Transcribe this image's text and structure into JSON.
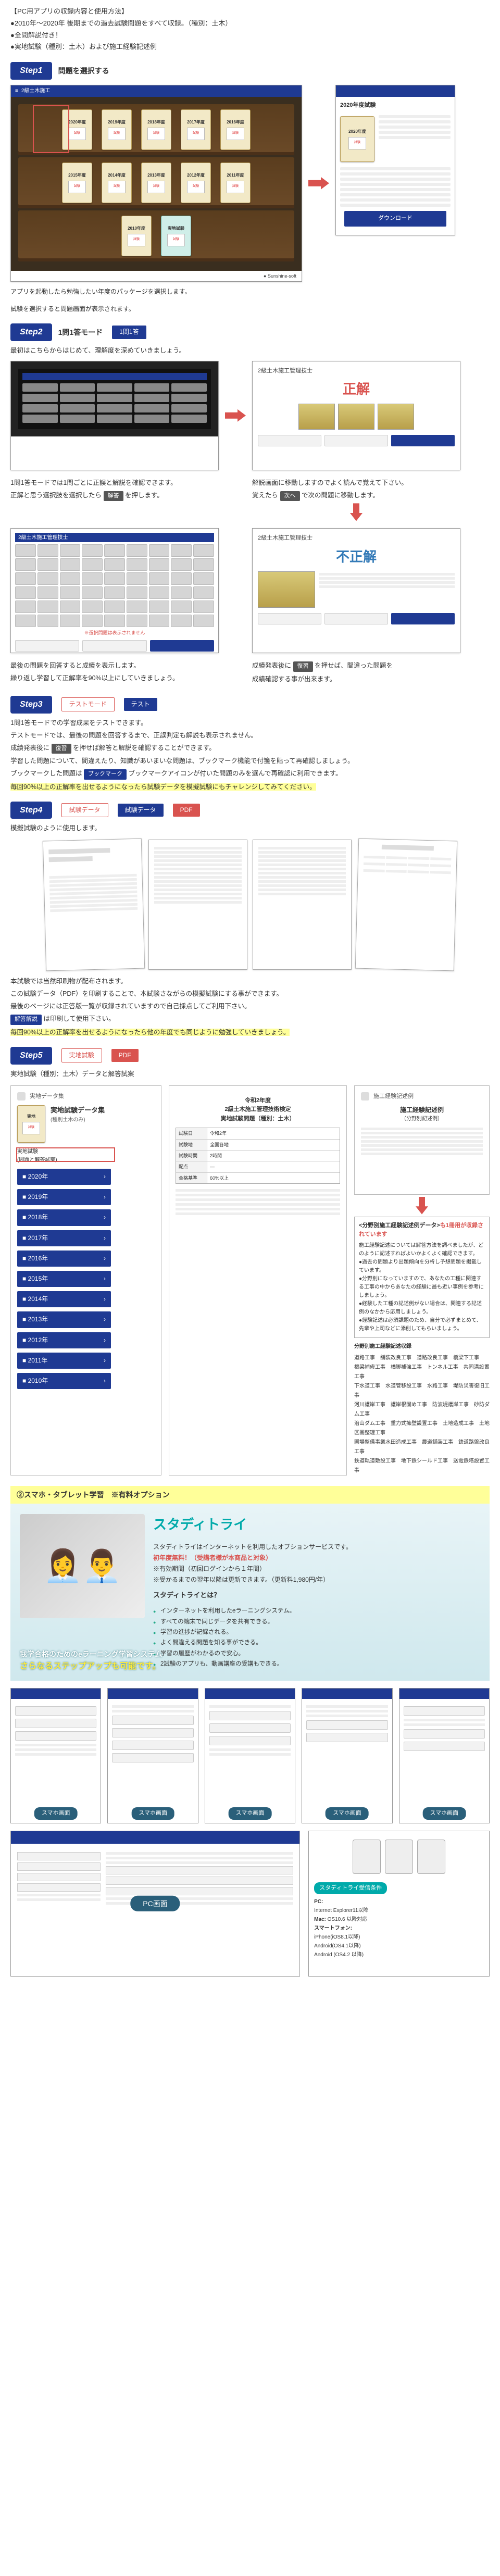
{
  "intro": {
    "heading": "【PC用アプリの収録内容と使用方法】",
    "b1": "●2010年～2020年 後期までの過去試験問題をすべて収録。（種別：土木）",
    "b2": "●全問解説付き！",
    "b3": "●実地試験（種別：土木）および施工経験記述例"
  },
  "steps": {
    "s1": {
      "pill": "Step1",
      "title": "問題を選択する"
    },
    "s2": {
      "pill": "Step2",
      "title": "1問1答モード",
      "btn": "1問1答"
    },
    "s3": {
      "pill": "Step3",
      "title": "テストモード",
      "btn": "テスト"
    },
    "s4": {
      "pill": "Step4",
      "title": "試験データ",
      "btn": "試験データ",
      "pdf": "PDF"
    },
    "s5": {
      "pill": "Step5",
      "title": "実地試験",
      "pdf": "PDF"
    }
  },
  "shelf": {
    "row1": [
      "2020年度",
      "2019年度",
      "2018年度",
      "2017年度",
      "2016年度"
    ],
    "row2": [
      "2015年度",
      "2014年度",
      "2013年度",
      "2012年度",
      "2011年度"
    ],
    "row3": [
      "2010年度",
      "実地試験"
    ],
    "brand": "● Sunshine-soft",
    "side_title": "2020年度試験",
    "side_btn": "ダウンロード",
    "cap1": "アプリを起動したら勉強したい年度のパッケージを選択します。",
    "cap2": "試験を選択すると問題画面が表示されます。"
  },
  "s2": {
    "intro": "最初はこちらからはじめて、理解度を深めていきましょう。",
    "correct": "正解",
    "wrong": "不正解",
    "q_title": "2級土木施工管理技士",
    "foot_note": "※選択問題は表示されません",
    "left_cap1": "1問1答モードでは1問ごとに正誤と解説を確認できます。",
    "left_cap2_a": "正解と思う選択肢を選択したら",
    "left_cap2_key": "解答",
    "left_cap2_b": "を押します。",
    "right_cap1": "解説画面に移動しますのでよく読んで覚えて下さい。",
    "right_cap2_a": "覚えたら",
    "right_cap2_key": "次へ",
    "right_cap2_b": "で次の問題に移動します。",
    "bl1": "最後の問題を回答すると成績を表示します。",
    "bl2": "繰り返し学習して正解率を90%以上にしていきましょう。",
    "br1_a": "成績発表後に",
    "br1_key": "復習",
    "br1_b": "を押せば、間違った問題を",
    "br2": "成績確認する事が出来ます。"
  },
  "s3": {
    "l1": "1問1答モードでの学習成果をテストできます。",
    "l2": "テストモードでは、最後の問題を回答するまで、正誤判定も解説も表示されません。",
    "l3_a": "成績発表後に",
    "l3_key": "復習",
    "l3_b": "を押せば解答と解説を確認することができます。",
    "l4": "学習した問題について、間違えたり、知識があいまいな問題は、ブックマーク機能で付箋を貼って再確認しましょう。",
    "l5_a": "ブックマークした問題は",
    "l5_key": "ブックマーク",
    "l5_b": "ブックマークアイコンが付いた問題のみを選んで再確認に利用できます。",
    "l6_hl": "毎回90%以上の正解率を出せるようになったら試験データを模擬試験にもチャレンジしてみてください。"
  },
  "s4": {
    "l1": "模擬試験のように使用します。",
    "l2": "本試験では当然印刷物が配布されます。",
    "l3": "この試験データ（PDF）を印刷することで、本試験さながらの模擬試験にする事ができます。",
    "l4": "最後のページには正答版一覧が収録されていますので自己採点してご利用下さい。",
    "l5_key": "解答解説",
    "l5_b": "は印刷して使用下さい。",
    "l6_hl": "毎回90%以上の正解率を出せるようになったら他の年度でも同じように勉強していきましょう。"
  },
  "s5": {
    "sub": "実地試験（種別：土木）データと解答試案",
    "panel_title": "実地試験データ集",
    "panel_sub": "(種別土木のみ)",
    "years": [
      "2020年",
      "2019年",
      "2018年",
      "2017年",
      "2016年",
      "2015年",
      "2014年",
      "2013年",
      "2012年",
      "2011年",
      "2010年"
    ],
    "sheet_title": "令和2年度\n2級土木施工管理技術検定\n実地試験問題（種別：土木）",
    "right_title": "施工経験記述例",
    "right_sub": "（分野別記述例）",
    "instr_title_a": "<分野別施工経験記述例データ>",
    "instr_title_b": "も1冊用が収録されています",
    "instr_lines": [
      "施工経験記述については解答方法を調べましたが、どのように記述すればよいかよくよく確認できます。",
      "●過去の問題より出題傾向を分析し予想問題を掲載しています。",
      "●分野別になっていますので、あなたの工種に関連する工事の中からあなたの経験に最も近い事例を参考にしましょう。",
      "●経験した工種の記述例がない場合は、関連する記述例のなかから応用しましょう。",
      "●経験記述は必須課題のため、自分で必ずまとめて、先輩や上司などに添削してもらいましょう。"
    ],
    "cat_head": "分野別施工経験記述収録",
    "cats": "道路工事　舗装改良工事　道路改良工事　橋梁下工事\n橋梁補修工事　橋脚補強工事　トンネル工事　共同溝設置工事\n下水道工事　水道管移設工事　水路工事　堤防災害復旧工事\n河川護岸工事　護岸根固め工事　防波堤護岸工事　砂防ダム工事\n治山ダム工事　重力式擁壁設置工事　土地造成工事　土地区画整理工事\n圃場整備事業水田造成工事　農道舗装工事　鉄道路盤改良工事\n鉄道軌道敷設工事　地下鉄シールド工事　送電鉄塔設置工事"
  },
  "opt": {
    "banner": "②スマホ・タブレット学習　※有料オプション",
    "logo": "スタディトライ",
    "lead": "スタディトライはインターネットを利用したオプションサービスです。",
    "free": "初年度無料！（受講者様が本商品と対象）",
    "note1": "※有効期間（初回ログインから１年間）",
    "note2": "※受かるまでの翌年以降は更新できます。（更新料1,980円/年）",
    "q": "スタディトライとは？",
    "bullets": [
      "インターネットを利用したeラーニングシステム。",
      "すべての端末で同じデータを共有できる。",
      "学習の進捗が記録される。",
      "よく間違える問題を知る事ができる。",
      "学習の履歴がわかるので安心。",
      "2試験のアプリも、動画講座の受講もできる。"
    ],
    "tagline1": "我学合格のためのeラーニング学習システム",
    "tagline2": "さらなるステップアップも可能です。",
    "phone_tag": "スマホ画面",
    "pc_tag": "PC画面",
    "env_tag": "スタディトライ受信条件",
    "env": {
      "pc": "PC:",
      "pc_v": "Internet Explorer11以降",
      "mac": "Mac:",
      "mac_v": "OS10.6 以降対応",
      "sp": "スマートフォン:",
      "sp1": "iPhone(iOS8.1以降)",
      "sp2": "Android(OS4.1以降)",
      "sp3": "Android (OS4.2 以降)"
    }
  }
}
